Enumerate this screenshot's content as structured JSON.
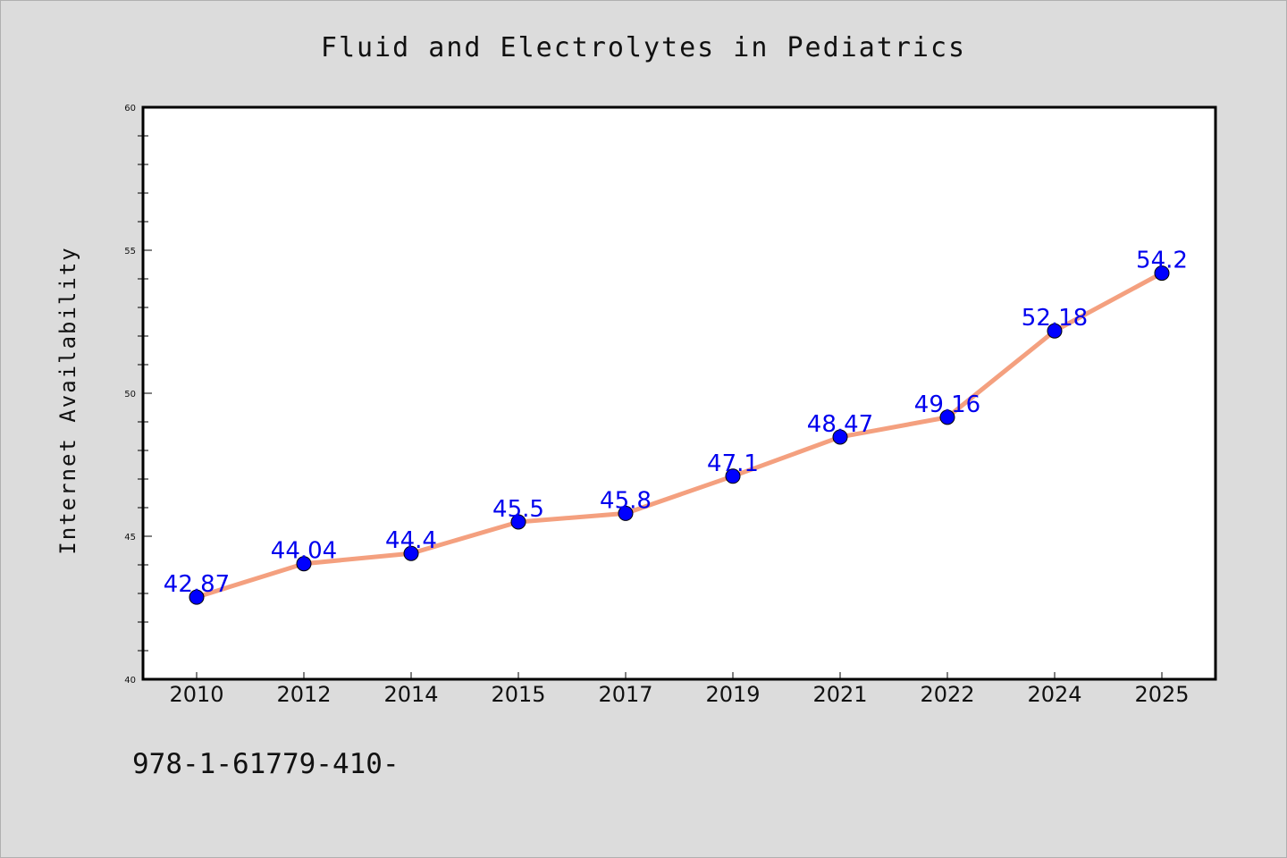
{
  "footer_text": "978-1-61779-410-",
  "colors": {
    "background": "#dcdcdc",
    "plot_background": "#ffffff",
    "line": "#f4a07f",
    "marker": "#0000ff",
    "data_label": "#0000ee"
  },
  "chart_data": {
    "type": "line",
    "title": "Fluid and Electrolytes in Pediatrics",
    "xlabel": "",
    "ylabel": "Internet Availability",
    "categories": [
      "2010",
      "2012",
      "2014",
      "2015",
      "2017",
      "2019",
      "2021",
      "2022",
      "2024",
      "2025"
    ],
    "series": [
      {
        "values": [
          42.87,
          44.04,
          44.4,
          45.5,
          45.8,
          47.1,
          48.47,
          49.16,
          52.18,
          54.2
        ],
        "labels": [
          "42.87",
          "44.04",
          "44.4",
          "45.5",
          "45.8",
          "47.1",
          "48.47",
          "49.16",
          "52.18",
          "54.2"
        ]
      }
    ],
    "ylim": [
      40,
      60
    ],
    "yticks": [
      "40",
      "45",
      "50",
      "55",
      "60"
    ],
    "grid": false,
    "legend": "none"
  }
}
